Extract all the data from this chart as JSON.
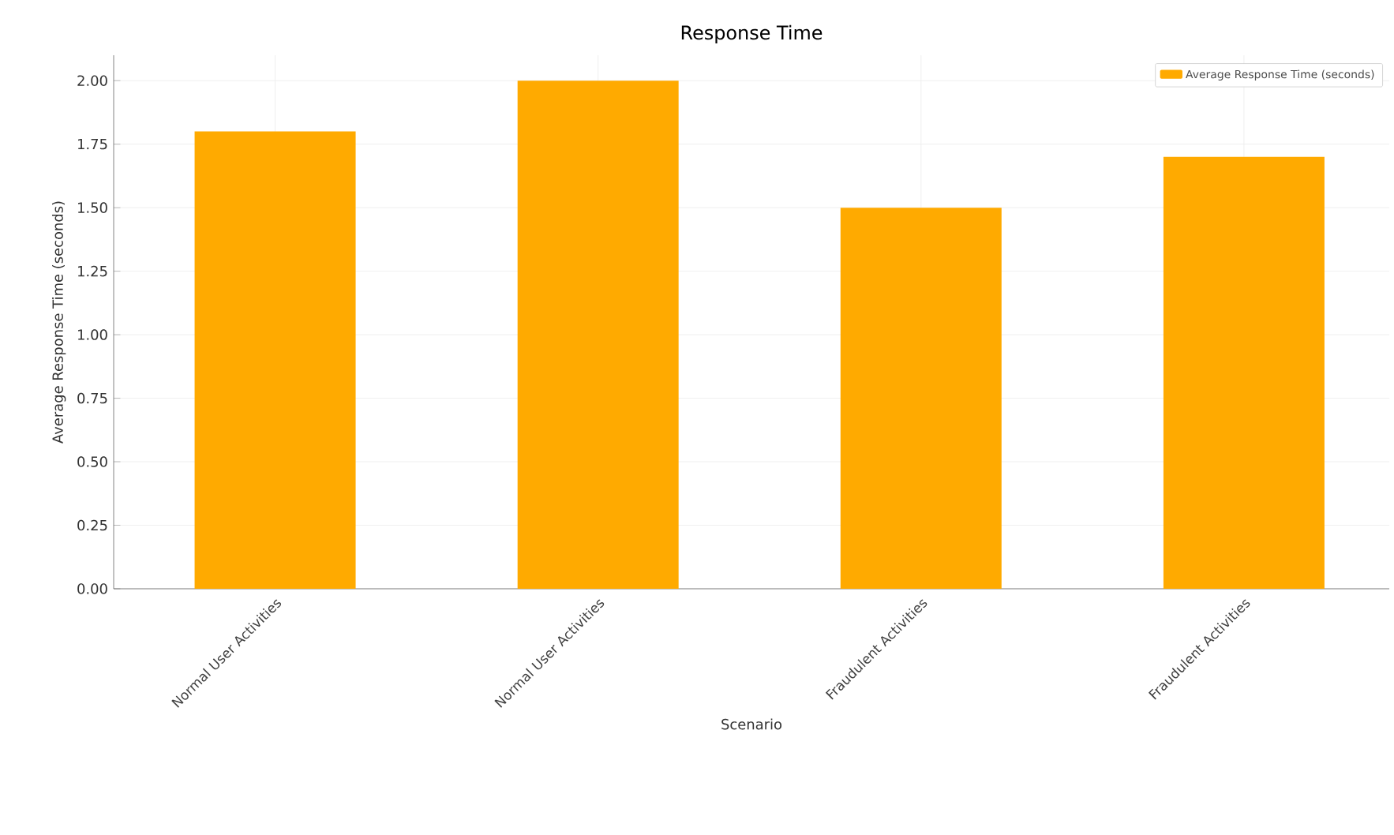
{
  "chart_data": {
    "type": "bar",
    "title": "Response Time",
    "xlabel": "Scenario",
    "ylabel": "Average Response Time (seconds)",
    "categories": [
      "Normal User Activities",
      "Normal User Activities",
      "Fraudulent Activities",
      "Fraudulent Activities"
    ],
    "series": [
      {
        "name": "Average Response Time (seconds)",
        "color": "#ffaa00",
        "values": [
          1.8,
          2.0,
          1.5,
          1.7
        ]
      }
    ],
    "ylim": [
      0,
      2.1
    ],
    "yticks": [
      {
        "value": 0,
        "label": "0.00"
      },
      {
        "value": 0.25,
        "label": "0.25"
      },
      {
        "value": 0.5,
        "label": "0.50"
      },
      {
        "value": 0.75,
        "label": "0.75"
      },
      {
        "value": 1.0,
        "label": "1.00"
      },
      {
        "value": 1.25,
        "label": "1.25"
      },
      {
        "value": 1.5,
        "label": "1.50"
      },
      {
        "value": 1.75,
        "label": "1.75"
      },
      {
        "value": 2.0,
        "label": "2.00"
      }
    ],
    "grid": true,
    "legend": "top right"
  }
}
